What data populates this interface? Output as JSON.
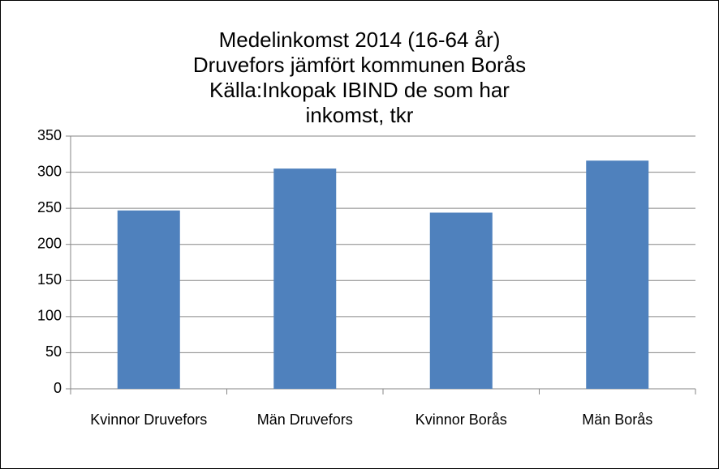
{
  "chart_data": {
    "type": "bar",
    "title": "Medelinkomst 2014 (16-64 år) Druvefors jämfört kommunen Borås Källa:Inkopak IBIND de som har inkomst, tkr",
    "categories": [
      "Kvinnor Druvefors",
      "Män Druvefors",
      "Kvinnor Borås",
      "Män Borås"
    ],
    "values": [
      247,
      305,
      244,
      316
    ],
    "color": "#4f81bd",
    "ylim": [
      0,
      350
    ],
    "yticks": [
      0,
      50,
      100,
      150,
      200,
      250,
      300,
      350
    ],
    "grid": true
  }
}
